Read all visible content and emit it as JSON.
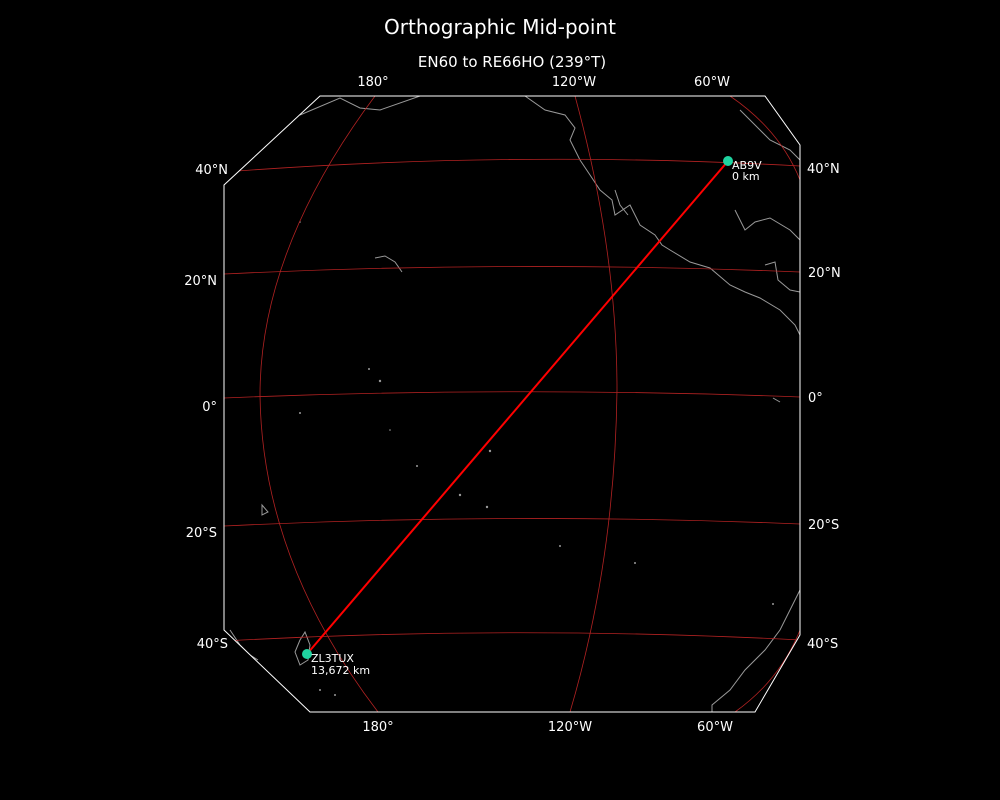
{
  "title": "Orthographic Mid-point",
  "subtitle": "EN60 to RE66HO (239°T)",
  "colors": {
    "background": "#000000",
    "frame": "#ffffff",
    "graticule": "#b22222",
    "path": "#ff0000",
    "station": "#1fd3a0",
    "coastline": "#999999"
  },
  "projection": "orthographic",
  "axes": {
    "top_labels": [
      "180°",
      "120°W",
      "60°W"
    ],
    "bottom_labels": [
      "180°",
      "120°W",
      "60°W"
    ],
    "left_labels": [
      "40°N",
      "20°N",
      "0°",
      "20°S",
      "40°S"
    ],
    "right_labels": [
      "40°N",
      "20°N",
      "0°",
      "20°S",
      "40°S"
    ]
  },
  "stations": [
    {
      "call": "AB9V",
      "distance": "0 km"
    },
    {
      "call": "ZL3TUX",
      "distance": "13,672 km"
    }
  ]
}
